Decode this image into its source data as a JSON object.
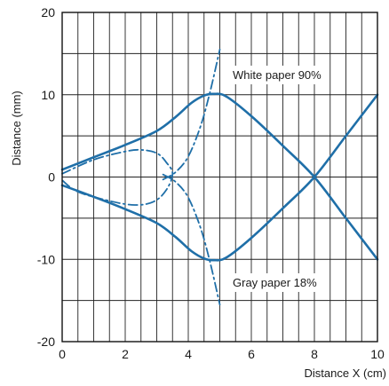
{
  "chart_data": {
    "type": "line",
    "title": "",
    "xlabel": "Distance X (cm)",
    "ylabel": "Distance (mm)",
    "xlim": [
      0,
      10
    ],
    "ylim": [
      -20,
      20
    ],
    "x_ticks": [
      "0",
      "2",
      "4",
      "6",
      "8",
      "10"
    ],
    "y_ticks": [
      "20",
      "10",
      "0",
      "-10",
      "-20"
    ],
    "grid": true,
    "color": "#1f6fa8",
    "annotations": [
      {
        "id": "white",
        "text": "White paper 90%"
      },
      {
        "id": "gray",
        "text": "Gray paper 18%"
      }
    ],
    "series": [
      {
        "style": "solid",
        "points": [
          [
            0,
            0.9
          ],
          [
            1,
            2.4
          ],
          [
            2,
            3.9
          ],
          [
            3,
            5.6
          ],
          [
            3.6,
            7.3
          ],
          [
            4.1,
            9.0
          ],
          [
            4.5,
            9.9
          ],
          [
            4.8,
            10.1
          ],
          [
            5.2,
            9.8
          ],
          [
            6,
            7.4
          ],
          [
            7,
            3.8
          ],
          [
            8,
            0
          ],
          [
            9,
            -5
          ],
          [
            10,
            -10
          ]
        ]
      },
      {
        "style": "solid",
        "points": [
          [
            0,
            -1.0
          ],
          [
            1,
            -2.4
          ],
          [
            2,
            -3.9
          ],
          [
            3,
            -5.6
          ],
          [
            3.6,
            -7.3
          ],
          [
            4.1,
            -9.0
          ],
          [
            4.5,
            -9.9
          ],
          [
            4.8,
            -10.1
          ],
          [
            5.2,
            -9.8
          ],
          [
            6,
            -7.4
          ],
          [
            7,
            -3.8
          ],
          [
            8,
            0
          ],
          [
            9,
            5
          ],
          [
            10,
            10
          ]
        ]
      },
      {
        "style": "dashdot",
        "points": [
          [
            0,
            0.4
          ],
          [
            1,
            2.1
          ],
          [
            2,
            3.1
          ],
          [
            2.5,
            3.3
          ],
          [
            3.0,
            2.9
          ],
          [
            3.3,
            1.8
          ],
          [
            3.5,
            0.4
          ],
          [
            3.3,
            -1.6
          ],
          [
            2.9,
            -3.0
          ],
          [
            2.3,
            -3.4
          ],
          [
            1.5,
            -2.9
          ],
          [
            0.5,
            -1.8
          ],
          [
            0,
            -0.4
          ]
        ]
      },
      {
        "style": "dashdot",
        "points": [
          [
            3.2,
            -0.3
          ],
          [
            3.6,
            0.6
          ],
          [
            4.0,
            2.5
          ],
          [
            4.4,
            6.3
          ],
          [
            4.7,
            10.5
          ],
          [
            5.0,
            15.5
          ]
        ]
      },
      {
        "style": "dashdot",
        "points": [
          [
            3.2,
            0.3
          ],
          [
            3.6,
            -0.6
          ],
          [
            4.0,
            -2.5
          ],
          [
            4.4,
            -6.3
          ],
          [
            4.7,
            -10.5
          ],
          [
            5.0,
            -15.5
          ]
        ]
      }
    ]
  }
}
